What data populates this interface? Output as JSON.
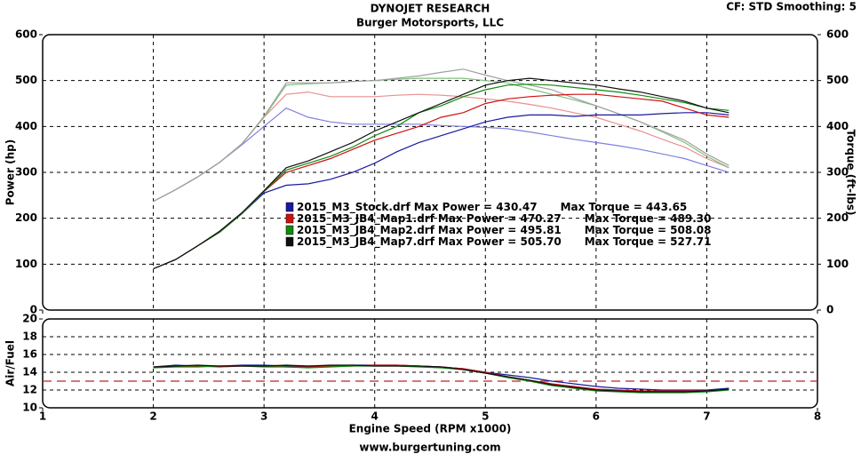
{
  "header": {
    "settings": "CF: STD  Smoothing: 5",
    "footer": "www.burgertuning.com"
  },
  "chart_data": [
    {
      "type": "line",
      "title": "DYNOJET RESEARCH",
      "subtitle": "Burger Motorsports, LLC",
      "ylabel": "Power (hp)",
      "y2label": "Torque (ft-lbs)",
      "xlim": [
        1,
        8
      ],
      "xticks": [
        1,
        2,
        3,
        4,
        5,
        6,
        7,
        8
      ],
      "ylim": [
        0,
        600
      ],
      "yticks": [
        0,
        100,
        200,
        300,
        400,
        500,
        600
      ],
      "y2lim": [
        0,
        600
      ],
      "y2ticks": [
        0,
        100,
        200,
        300,
        400,
        500,
        600
      ],
      "grid": true,
      "x": [
        2.0,
        2.2,
        2.4,
        2.6,
        2.8,
        3.0,
        3.2,
        3.4,
        3.6,
        3.8,
        4.0,
        4.2,
        4.4,
        4.6,
        4.8,
        5.0,
        5.2,
        5.4,
        5.6,
        5.8,
        6.0,
        6.2,
        6.4,
        6.6,
        6.8,
        7.0,
        7.2
      ],
      "series": [
        {
          "name": "2015_M3_Stock.drf",
          "color": "#1a1aa0",
          "max_label": "Max Power = 430.47",
          "values": [
            90,
            110,
            140,
            170,
            210,
            255,
            272,
            275,
            285,
            300,
            320,
            345,
            365,
            380,
            395,
            410,
            420,
            425,
            425,
            422,
            425,
            425,
            425,
            428,
            430,
            430,
            425
          ]
        },
        {
          "name": "2015_M3_JB4_Map1.drf",
          "color": "#d01010",
          "max_label": "Max Power = 470.27",
          "values": [
            90,
            110,
            140,
            170,
            210,
            258,
            300,
            315,
            330,
            350,
            370,
            385,
            400,
            420,
            430,
            450,
            460,
            465,
            468,
            470,
            470,
            465,
            460,
            455,
            440,
            425,
            420
          ]
        },
        {
          "name": "2015_M3_JB4_Map2.drf",
          "color": "#108a10",
          "max_label": "Max Power = 495.81",
          "values": [
            90,
            110,
            140,
            170,
            210,
            258,
            305,
            320,
            335,
            355,
            380,
            400,
            430,
            445,
            465,
            480,
            490,
            492,
            490,
            485,
            480,
            475,
            468,
            460,
            452,
            440,
            435
          ]
        },
        {
          "name": "2015_M3_JB4_Map7.drf",
          "color": "#101010",
          "max_label": "Max Power = 505.70",
          "values": [
            90,
            110,
            140,
            172,
            212,
            260,
            310,
            325,
            345,
            365,
            390,
            410,
            430,
            450,
            470,
            490,
            500,
            505,
            500,
            495,
            490,
            482,
            475,
            465,
            455,
            440,
            430
          ]
        },
        {
          "axis": "y2",
          "color": "#8080e0",
          "max_label": "Max Torque = 443.65",
          "values": [
            237,
            262,
            290,
            322,
            360,
            400,
            440,
            420,
            410,
            405,
            405,
            405,
            405,
            402,
            400,
            398,
            395,
            388,
            380,
            372,
            365,
            358,
            350,
            340,
            330,
            315,
            300
          ]
        },
        {
          "axis": "y2",
          "color": "#e89090",
          "max_label": "Max Torque = 489.30",
          "values": [
            237,
            262,
            290,
            322,
            362,
            420,
            470,
            475,
            465,
            465,
            465,
            468,
            470,
            468,
            465,
            460,
            455,
            448,
            440,
            430,
            420,
            405,
            390,
            372,
            355,
            330,
            310
          ]
        },
        {
          "axis": "y2",
          "color": "#80c080",
          "max_label": "Max Torque = 508.08",
          "values": [
            237,
            262,
            290,
            322,
            362,
            420,
            490,
            493,
            495,
            498,
            500,
            503,
            505,
            505,
            505,
            500,
            495,
            482,
            470,
            458,
            445,
            428,
            410,
            388,
            365,
            335,
            310
          ]
        },
        {
          "axis": "y2",
          "color": "#a0a0a0",
          "max_label": "Max Torque = 527.71",
          "values": [
            237,
            262,
            290,
            322,
            362,
            422,
            495,
            495,
            495,
            498,
            500,
            505,
            510,
            518,
            525,
            512,
            500,
            490,
            480,
            462,
            445,
            428,
            410,
            390,
            370,
            340,
            315
          ]
        }
      ]
    },
    {
      "type": "line",
      "ylabel": "Air/Fuel",
      "xlabel": "Engine Speed (RPM x1000)",
      "xlim": [
        1,
        8
      ],
      "xticks": [
        1,
        2,
        3,
        4,
        5,
        6,
        7,
        8
      ],
      "ylim": [
        10,
        20
      ],
      "yticks": [
        10,
        12,
        14,
        16,
        18,
        20
      ],
      "grid": true,
      "reference": 13,
      "x": [
        2.0,
        2.2,
        2.4,
        2.6,
        2.8,
        3.0,
        3.2,
        3.4,
        3.6,
        3.8,
        4.0,
        4.2,
        4.4,
        4.6,
        4.8,
        5.0,
        5.2,
        5.4,
        5.6,
        5.8,
        6.0,
        6.2,
        6.4,
        6.6,
        6.8,
        7.0,
        7.2
      ],
      "series": [
        {
          "color": "#1a1aa0",
          "values": [
            14.6,
            14.8,
            14.7,
            14.7,
            14.8,
            14.8,
            14.7,
            14.7,
            14.7,
            14.8,
            14.8,
            14.8,
            14.7,
            14.6,
            14.4,
            14.0,
            13.7,
            13.4,
            13.0,
            12.7,
            12.4,
            12.2,
            12.1,
            12.0,
            12.0,
            12.0,
            12.2
          ]
        },
        {
          "color": "#d01010",
          "values": [
            14.6,
            14.7,
            14.7,
            14.6,
            14.7,
            14.7,
            14.6,
            14.6,
            14.7,
            14.7,
            14.8,
            14.8,
            14.7,
            14.6,
            14.4,
            14.0,
            13.5,
            13.1,
            12.7,
            12.4,
            12.1,
            12.0,
            11.9,
            11.9,
            11.9,
            11.9,
            12.1
          ]
        },
        {
          "color": "#108a10",
          "values": [
            14.5,
            14.6,
            14.6,
            14.7,
            14.7,
            14.6,
            14.6,
            14.5,
            14.6,
            14.7,
            14.7,
            14.7,
            14.6,
            14.5,
            14.3,
            13.9,
            13.4,
            13.0,
            12.5,
            12.2,
            11.9,
            11.8,
            11.7,
            11.7,
            11.7,
            11.8,
            12.0
          ]
        },
        {
          "color": "#101010",
          "values": [
            14.6,
            14.7,
            14.8,
            14.7,
            14.7,
            14.7,
            14.8,
            14.7,
            14.8,
            14.8,
            14.7,
            14.7,
            14.7,
            14.6,
            14.3,
            13.9,
            13.5,
            13.1,
            12.6,
            12.3,
            12.0,
            11.9,
            11.8,
            11.8,
            11.8,
            11.9,
            12.1
          ]
        }
      ]
    }
  ]
}
